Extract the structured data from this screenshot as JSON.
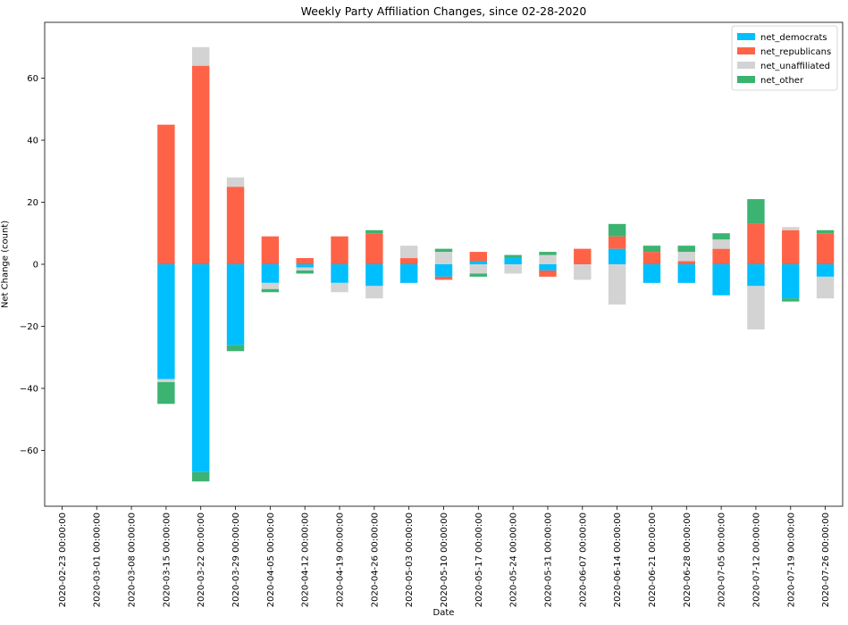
{
  "chart_data": {
    "type": "bar",
    "stacked": true,
    "title": "Weekly Party Affiliation Changes, since 02-28-2020",
    "xlabel": "Date",
    "ylabel": "Net Change (count)",
    "ylim": [
      -78,
      78
    ],
    "yticks": [
      -60,
      -40,
      -20,
      0,
      20,
      40,
      60
    ],
    "ytick_labels": [
      "−60",
      "−40",
      "−20",
      "0",
      "20",
      "40",
      "60"
    ],
    "grid": false,
    "legend_position": "top-right",
    "categories": [
      "2020-02-23 00:00:00",
      "2020-03-01 00:00:00",
      "2020-03-08 00:00:00",
      "2020-03-15 00:00:00",
      "2020-03-22 00:00:00",
      "2020-03-29 00:00:00",
      "2020-04-05 00:00:00",
      "2020-04-12 00:00:00",
      "2020-04-19 00:00:00",
      "2020-04-26 00:00:00",
      "2020-05-03 00:00:00",
      "2020-05-10 00:00:00",
      "2020-05-17 00:00:00",
      "2020-05-24 00:00:00",
      "2020-05-31 00:00:00",
      "2020-06-07 00:00:00",
      "2020-06-14 00:00:00",
      "2020-06-21 00:00:00",
      "2020-06-28 00:00:00",
      "2020-07-05 00:00:00",
      "2020-07-12 00:00:00",
      "2020-07-19 00:00:00",
      "2020-07-26 00:00:00"
    ],
    "series": [
      {
        "name": "net_democrats",
        "color": "#00bfff",
        "values": [
          0,
          0,
          0,
          -37,
          -67,
          -26,
          -6,
          -1,
          -6,
          -7,
          -6,
          -4,
          1,
          2,
          -2,
          0,
          5,
          -6,
          -6,
          -10,
          -7,
          -11,
          -4
        ]
      },
      {
        "name": "net_republicans",
        "color": "#ff6347",
        "values": [
          0,
          0,
          0,
          45,
          64,
          25,
          9,
          2,
          9,
          10,
          2,
          -1,
          3,
          0,
          -2,
          5,
          4,
          4,
          1,
          5,
          13,
          11,
          10
        ]
      },
      {
        "name": "net_unaffiliated",
        "color": "#d3d3d3",
        "values": [
          0,
          0,
          0,
          -1,
          6,
          3,
          -2,
          -1,
          -3,
          -4,
          4,
          4,
          -3,
          -3,
          3,
          -5,
          -13,
          0,
          3,
          3,
          -14,
          1,
          -7
        ]
      },
      {
        "name": "net_other",
        "color": "#3cb371",
        "values": [
          0,
          0,
          0,
          -7,
          -3,
          -2,
          -1,
          -1,
          0,
          1,
          0,
          1,
          -1,
          1,
          1,
          0,
          4,
          2,
          2,
          2,
          8,
          -1,
          1
        ]
      }
    ]
  }
}
